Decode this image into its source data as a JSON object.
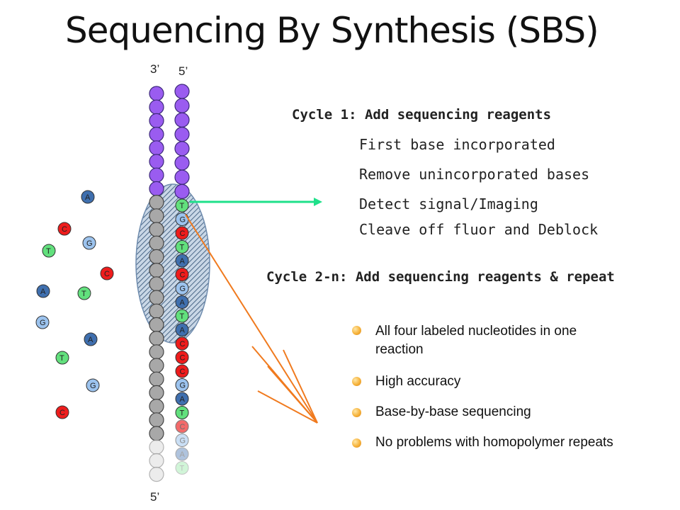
{
  "title": "Sequencing By Synthesis (SBS)",
  "strand_labels": {
    "left_top": "3’",
    "right_top": "5’",
    "bottom": "5’"
  },
  "template_strand": {
    "top_color": "#9a5cf0",
    "mid_color": "#a8a8a8",
    "tail_color": "#e6e6e6"
  },
  "synth_strand_bases": [
    "T",
    "G",
    "C",
    "T",
    "A",
    "C",
    "G",
    "A",
    "T",
    "A",
    "C",
    "C",
    "C",
    "G",
    "A",
    "T",
    "C",
    "G",
    "A",
    "T"
  ],
  "base_colors": {
    "A": "#3f6fae",
    "C": "#ee1c1c",
    "G": "#9cc3ee",
    "T": "#62e07d"
  },
  "free_nucleotides": [
    "A",
    "C",
    "G",
    "T",
    "C",
    "A",
    "T",
    "G",
    "A",
    "T",
    "G",
    "C"
  ],
  "cycle1": {
    "heading": "Cycle 1: Add sequencing reagents",
    "steps": [
      "First base incorporated",
      "Remove unincorporated bases",
      "Detect signal/Imaging",
      "Cleave off fluor and Deblock"
    ]
  },
  "cycle2": {
    "heading": "Cycle 2-n: Add sequencing reagents & repeat"
  },
  "features": [
    "All four labeled nucleotides in one reaction",
    "High accuracy",
    "Base-by-base sequencing",
    "No problems with homopolymer repeats"
  ],
  "colors": {
    "arrow_green": "#1fe08a",
    "orange_lines": "#f07a1e",
    "ellipse": "#8fa9c6"
  }
}
